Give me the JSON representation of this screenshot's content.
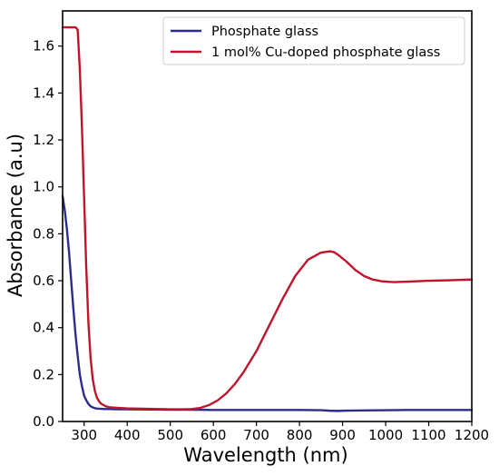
{
  "chart_data": {
    "type": "line",
    "xlabel": "Wavelength (nm)",
    "ylabel": "Absorbance (a.u)",
    "xlim": [
      250,
      1200
    ],
    "ylim": [
      0.0,
      1.75
    ],
    "xticks": [
      300,
      400,
      500,
      600,
      700,
      800,
      900,
      1000,
      1100,
      1200
    ],
    "yticks": [
      0.0,
      0.2,
      0.4,
      0.6,
      0.8,
      1.0,
      1.2,
      1.4,
      1.6
    ],
    "x_tick_labels": [
      "300",
      "400",
      "500",
      "600",
      "700",
      "800",
      "900",
      "1000",
      "1100",
      "1200"
    ],
    "y_tick_labels": [
      "0.0",
      "0.2",
      "0.4",
      "0.6",
      "0.8",
      "1.0",
      "1.2",
      "1.4",
      "1.6"
    ],
    "grid": false,
    "legend_position": "top-right",
    "series": [
      {
        "name": "Phosphate glass",
        "color": "#2c2c8c",
        "x": [
          250,
          255,
          260,
          265,
          270,
          275,
          280,
          285,
          290,
          295,
          300,
          305,
          310,
          315,
          320,
          325,
          330,
          340,
          350,
          360,
          380,
          400,
          450,
          500,
          550,
          600,
          650,
          700,
          750,
          800,
          850,
          870,
          890,
          900,
          950,
          1000,
          1050,
          1100,
          1150,
          1200
        ],
        "y": [
          0.96,
          0.9,
          0.82,
          0.72,
          0.6,
          0.48,
          0.37,
          0.28,
          0.2,
          0.15,
          0.11,
          0.09,
          0.075,
          0.065,
          0.06,
          0.057,
          0.055,
          0.054,
          0.053,
          0.053,
          0.052,
          0.052,
          0.051,
          0.05,
          0.05,
          0.049,
          0.049,
          0.049,
          0.049,
          0.049,
          0.048,
          0.046,
          0.045,
          0.046,
          0.047,
          0.048,
          0.049,
          0.049,
          0.049,
          0.049
        ]
      },
      {
        "name": "1 mol% Cu-doped phosphate glass",
        "color": "#c0142c",
        "x": [
          250,
          270,
          280,
          285,
          290,
          295,
          300,
          305,
          310,
          315,
          320,
          325,
          330,
          335,
          340,
          350,
          360,
          380,
          400,
          450,
          500,
          530,
          550,
          570,
          590,
          610,
          630,
          650,
          670,
          700,
          730,
          760,
          790,
          820,
          850,
          870,
          880,
          890,
          910,
          930,
          950,
          970,
          990,
          1010,
          1020,
          1050,
          1100,
          1150,
          1200
        ],
        "y": [
          1.68,
          1.68,
          1.68,
          1.67,
          1.5,
          1.25,
          0.95,
          0.65,
          0.42,
          0.27,
          0.18,
          0.13,
          0.1,
          0.085,
          0.075,
          0.065,
          0.06,
          0.058,
          0.056,
          0.054,
          0.052,
          0.052,
          0.053,
          0.058,
          0.07,
          0.09,
          0.12,
          0.16,
          0.21,
          0.3,
          0.41,
          0.52,
          0.62,
          0.69,
          0.72,
          0.725,
          0.722,
          0.71,
          0.68,
          0.645,
          0.62,
          0.605,
          0.598,
          0.595,
          0.594,
          0.596,
          0.6,
          0.602,
          0.605
        ]
      }
    ]
  }
}
